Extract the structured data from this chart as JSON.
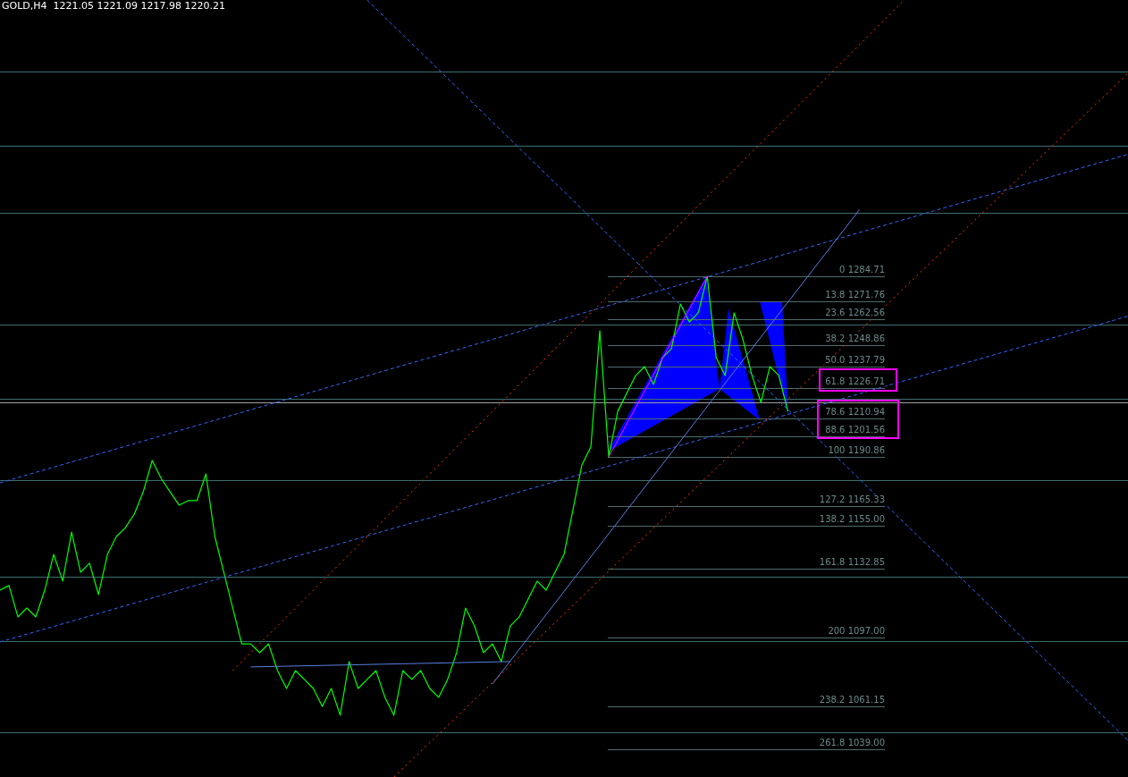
{
  "chart_data": {
    "type": "line",
    "title": "GOLD,H4  1221.05 1221.09 1217.98 1220.21",
    "categories": [
      null,
      null,
      null,
      null,
      null,
      null,
      null,
      null,
      null,
      null,
      null,
      null,
      null,
      null,
      null,
      null,
      null,
      null,
      null,
      null,
      null,
      null,
      null,
      null,
      null,
      null,
      null,
      null,
      null,
      null,
      null,
      null,
      null,
      null,
      null,
      null,
      null,
      null,
      null,
      null,
      null,
      null,
      null,
      null,
      null,
      null,
      null,
      null,
      null,
      null,
      null,
      null,
      null,
      null,
      null,
      null,
      null,
      null,
      null,
      null,
      null,
      null,
      null,
      null,
      null,
      null,
      null,
      null,
      null,
      null,
      null,
      null,
      null,
      null,
      null,
      null,
      null,
      null,
      null,
      null,
      null,
      null,
      null,
      null,
      null,
      null,
      null,
      null,
      null,
      null,
      null,
      null,
      null,
      null,
      null,
      null,
      null,
      null,
      null,
      null,
      null,
      null,
      null,
      null,
      null,
      null,
      null,
      null,
      null,
      null,
      null,
      null,
      null,
      null,
      null,
      null,
      null,
      null,
      null,
      null,
      null,
      null,
      null,
      null,
      null,
      null,
      null
    ],
    "ylim": [
      1024.5,
      1428.3
    ],
    "tick_labels": false,
    "series": [
      {
        "type": "line",
        "color": "#00ff00",
        "values": [
          1121.6,
          1124.0,
          1107.7,
          1112.3,
          1107.7,
          1121.6,
          1140.2,
          1126.3,
          1151.8,
          1130.9,
          1135.6,
          1119.3,
          1140.2,
          1149.5,
          1154.1,
          1161.1,
          1172.7,
          1189.0,
          1179.7,
          1172.7,
          1165.8,
          1168.1,
          1168.1,
          1182.0,
          1149.5,
          1130.9,
          1112.3,
          1093.7,
          1093.7,
          1089.1,
          1093.7,
          1079.8,
          1070.5,
          1079.8,
          1075.2,
          1070.5,
          1061.2,
          1070.5,
          1056.6,
          1084.5,
          1070.5,
          1075.2,
          1079.8,
          1065.9,
          1056.6,
          1079.8,
          1075.2,
          1079.8,
          1070.5,
          1065.9,
          1075.2,
          1089.1,
          1112.3,
          1103.0,
          1089.1,
          1093.7,
          1084.5,
          1103.0,
          1107.7,
          1117.0,
          1126.3,
          1121.6,
          1130.9,
          1140.2,
          1163.4,
          1186.7,
          1196.0,
          1256.4,
          1190.9,
          1214.5,
          1223.8,
          1233.1,
          1237.8,
          1228.5,
          1242.4,
          1247.1,
          1270.3,
          1261.0,
          1265.7,
          1284.7,
          1242.4,
          1233.1,
          1265.7,
          1251.7,
          1233.1,
          1219.2,
          1237.8,
          1233.1,
          1214.5,
          null,
          null,
          null,
          null,
          null,
          null,
          null,
          null,
          null,
          null,
          null,
          null,
          null,
          null,
          null,
          null,
          null,
          null,
          null,
          null,
          null,
          null,
          null,
          null,
          null,
          null,
          null,
          null,
          null,
          null,
          null,
          null,
          null,
          null,
          null,
          null,
          null,
          null
        ]
      },
      {
        "type": "line",
        "color": "#ff00ff",
        "line_style": "solid",
        "values": [
          null,
          null,
          null,
          null,
          null,
          null,
          null,
          null,
          null,
          null,
          null,
          null,
          null,
          null,
          null,
          null,
          null,
          null,
          null,
          null,
          null,
          null,
          null,
          null,
          null,
          null,
          null,
          null,
          null,
          null,
          null,
          null,
          null,
          null,
          null,
          null,
          null,
          null,
          null,
          null,
          null,
          null,
          null,
          null,
          null,
          null,
          null,
          null,
          null,
          null,
          null,
          null,
          null,
          null,
          null,
          null,
          null,
          null,
          null,
          null,
          null,
          null,
          null,
          null,
          null,
          null,
          null,
          null,
          1190.9,
          null,
          null,
          null,
          null,
          null,
          null,
          null,
          null,
          null,
          null,
          1284.7,
          null,
          null,
          null,
          null,
          null,
          null,
          null,
          null,
          null,
          null,
          null,
          null,
          null,
          null,
          null,
          null,
          null,
          null,
          null,
          null,
          null,
          null,
          null,
          null,
          null,
          null,
          null,
          null,
          null,
          null,
          null,
          null,
          null,
          null,
          null,
          null,
          null,
          null,
          null,
          null,
          null,
          null,
          null,
          null,
          null,
          null,
          null
        ]
      },
      {
        "type": "line",
        "color": "#3366ff",
        "line_style": "dashed",
        "values": [
          1177.4,
          null,
          null,
          null,
          null,
          null,
          null,
          null,
          null,
          null,
          null,
          null,
          null,
          null,
          null,
          null,
          null,
          null,
          null,
          null,
          null,
          null,
          null,
          null,
          null,
          null,
          null,
          null,
          null,
          null,
          null,
          null,
          null,
          null,
          null,
          null,
          null,
          null,
          null,
          null,
          null,
          null,
          null,
          null,
          null,
          null,
          null,
          null,
          null,
          null,
          null,
          null,
          null,
          null,
          null,
          null,
          null,
          null,
          null,
          null,
          null,
          null,
          null,
          null,
          null,
          null,
          null,
          null,
          null,
          null,
          null,
          null,
          null,
          null,
          null,
          null,
          null,
          null,
          null,
          null,
          null,
          null,
          null,
          null,
          null,
          null,
          null,
          null,
          null,
          null,
          null,
          null,
          null,
          null,
          null,
          null,
          null,
          null,
          null,
          null,
          null,
          null,
          null,
          null,
          null,
          null,
          null,
          null,
          null,
          null,
          null,
          null,
          null,
          null,
          null,
          null,
          null,
          null,
          null,
          null,
          null,
          null,
          null,
          null,
          null,
          null,
          1348.1
        ]
      },
      {
        "type": "line",
        "color": "#3366ff",
        "line_style": "dashed",
        "values": [
          1094.7,
          null,
          null,
          null,
          null,
          null,
          null,
          null,
          null,
          null,
          null,
          null,
          null,
          null,
          null,
          null,
          null,
          null,
          null,
          null,
          null,
          null,
          null,
          null,
          null,
          null,
          null,
          null,
          null,
          null,
          null,
          null,
          null,
          null,
          null,
          null,
          null,
          null,
          null,
          null,
          null,
          null,
          null,
          null,
          null,
          null,
          null,
          null,
          null,
          null,
          null,
          null,
          null,
          null,
          null,
          null,
          null,
          null,
          null,
          null,
          null,
          null,
          null,
          null,
          null,
          null,
          null,
          null,
          null,
          null,
          null,
          null,
          null,
          null,
          null,
          null,
          null,
          null,
          null,
          null,
          null,
          null,
          null,
          null,
          null,
          null,
          null,
          null,
          null,
          null,
          null,
          null,
          null,
          null,
          null,
          null,
          null,
          null,
          null,
          null,
          null,
          null,
          null,
          null,
          null,
          null,
          null,
          null,
          null,
          null,
          null,
          null,
          null,
          null,
          null,
          null,
          null,
          null,
          null,
          null,
          null,
          null,
          null,
          null,
          null,
          null,
          1264.0
        ]
      },
      {
        "type": "line",
        "color": "#3366ff",
        "line_style": "dashed",
        "values": [
          null,
          null,
          null,
          null,
          null,
          null,
          null,
          null,
          null,
          null,
          null,
          null,
          null,
          null,
          null,
          null,
          null,
          null,
          null,
          null,
          null,
          null,
          null,
          null,
          null,
          null,
          null,
          null,
          null,
          null,
          null,
          null,
          null,
          null,
          null,
          null,
          null,
          null,
          null,
          null,
          null,
          1428.3,
          null,
          null,
          null,
          null,
          null,
          null,
          null,
          null,
          null,
          null,
          null,
          null,
          null,
          null,
          null,
          null,
          null,
          null,
          null,
          null,
          null,
          null,
          null,
          null,
          null,
          null,
          null,
          null,
          null,
          null,
          null,
          null,
          null,
          null,
          null,
          null,
          null,
          null,
          null,
          null,
          null,
          null,
          null,
          null,
          null,
          null,
          null,
          null,
          null,
          null,
          null,
          null,
          null,
          null,
          null,
          null,
          null,
          null,
          null,
          null,
          null,
          null,
          null,
          null,
          null,
          null,
          null,
          null,
          null,
          null,
          null,
          null,
          null,
          null,
          null,
          null,
          null,
          null,
          null,
          null,
          null,
          null,
          null,
          null,
          1043.5
        ]
      },
      {
        "type": "line",
        "color": "#5a7fe0",
        "line_style": "solid",
        "values": [
          null,
          null,
          null,
          null,
          null,
          null,
          null,
          null,
          null,
          null,
          null,
          null,
          null,
          null,
          null,
          null,
          null,
          null,
          null,
          null,
          null,
          null,
          null,
          null,
          null,
          null,
          null,
          null,
          null,
          null,
          null,
          null,
          null,
          null,
          null,
          null,
          null,
          null,
          null,
          null,
          null,
          null,
          null,
          null,
          null,
          null,
          null,
          null,
          null,
          null,
          null,
          null,
          null,
          null,
          null,
          1072.8,
          null,
          null,
          null,
          null,
          null,
          null,
          null,
          null,
          null,
          null,
          null,
          null,
          null,
          null,
          null,
          null,
          null,
          null,
          null,
          null,
          null,
          null,
          null,
          null,
          null,
          null,
          null,
          null,
          null,
          null,
          null,
          null,
          null,
          null,
          null,
          null,
          null,
          null,
          null,
          null,
          1319.3,
          null,
          null,
          null,
          null,
          null,
          null,
          null,
          null,
          null,
          null,
          null,
          null,
          null,
          null,
          null,
          null,
          null,
          null,
          null,
          null,
          null,
          null,
          null,
          null,
          null,
          null,
          null,
          null,
          null,
          null
        ]
      },
      {
        "type": "line",
        "color": "#5a7fe0",
        "line_style": "solid",
        "values": [
          null,
          null,
          null,
          null,
          null,
          null,
          null,
          null,
          null,
          null,
          null,
          null,
          null,
          null,
          null,
          null,
          null,
          null,
          null,
          null,
          null,
          null,
          null,
          null,
          null,
          null,
          null,
          null,
          1081.7,
          null,
          null,
          null,
          null,
          null,
          null,
          null,
          null,
          null,
          null,
          null,
          null,
          null,
          null,
          null,
          null,
          null,
          null,
          null,
          null,
          null,
          null,
          null,
          null,
          null,
          null,
          null,
          null,
          1084.5,
          null,
          null,
          null,
          null,
          null,
          null,
          null,
          null,
          null,
          null,
          null,
          null,
          null,
          null,
          null,
          null,
          null,
          null,
          null,
          null,
          null,
          null,
          null,
          null,
          null,
          null,
          null,
          null,
          null,
          null,
          null,
          null,
          null,
          null,
          null,
          null,
          null,
          null,
          null,
          null,
          null,
          null,
          null,
          null,
          null,
          null,
          null,
          null,
          null,
          null,
          null,
          null,
          null,
          null,
          null,
          null,
          null,
          null,
          null,
          null,
          null,
          null,
          null,
          null,
          null,
          null,
          null,
          null,
          null
        ]
      },
      {
        "type": "line",
        "color": "#ff3300",
        "line_style": "dotted",
        "values": [
          null,
          null,
          null,
          null,
          null,
          null,
          null,
          null,
          null,
          null,
          null,
          null,
          null,
          null,
          null,
          null,
          null,
          null,
          null,
          null,
          null,
          null,
          null,
          null,
          null,
          null,
          1079.8,
          null,
          null,
          null,
          null,
          null,
          null,
          null,
          null,
          null,
          null,
          null,
          null,
          null,
          null,
          null,
          null,
          null,
          null,
          null,
          null,
          null,
          null,
          null,
          null,
          null,
          null,
          null,
          null,
          null,
          null,
          null,
          null,
          null,
          null,
          null,
          null,
          null,
          null,
          null,
          null,
          null,
          null,
          null,
          null,
          null,
          null,
          null,
          null,
          null,
          null,
          null,
          null,
          null,
          null,
          null,
          null,
          null,
          null,
          null,
          null,
          null,
          null,
          null,
          null,
          null,
          null,
          null,
          null,
          null,
          null,
          null,
          null,
          null,
          null,
          1428.3,
          null,
          null,
          null,
          null,
          null,
          null,
          null,
          null,
          null,
          null,
          null,
          null,
          null,
          null,
          null,
          null,
          null,
          null,
          null,
          null,
          null,
          null,
          null,
          null,
          null
        ]
      },
      {
        "type": "line",
        "color": "#ff3300",
        "line_style": "dotted",
        "values": [
          null,
          null,
          null,
          null,
          null,
          null,
          null,
          null,
          null,
          null,
          null,
          null,
          null,
          null,
          null,
          null,
          null,
          null,
          null,
          null,
          null,
          null,
          null,
          null,
          null,
          null,
          null,
          null,
          null,
          null,
          null,
          null,
          null,
          null,
          null,
          null,
          null,
          null,
          null,
          null,
          null,
          null,
          null,
          null,
          1024.5,
          null,
          null,
          null,
          null,
          null,
          null,
          null,
          null,
          null,
          null,
          null,
          null,
          null,
          null,
          null,
          null,
          null,
          null,
          null,
          null,
          null,
          null,
          null,
          null,
          null,
          null,
          null,
          null,
          null,
          null,
          null,
          null,
          null,
          null,
          null,
          null,
          null,
          null,
          null,
          null,
          null,
          null,
          null,
          null,
          null,
          null,
          null,
          null,
          null,
          null,
          null,
          null,
          null,
          null,
          null,
          null,
          null,
          null,
          null,
          null,
          null,
          null,
          null,
          null,
          null,
          null,
          null,
          null,
          null,
          null,
          null,
          null,
          null,
          null,
          null,
          null,
          null,
          null,
          null,
          null,
          null,
          1390.2
        ]
      }
    ],
    "ref_lines": [
      {
        "axis": "y",
        "value": 1391.1,
        "color": "#3f6f6f"
      },
      {
        "axis": "y",
        "value": 1352.5,
        "color": "#3f6f6f"
      },
      {
        "axis": "y",
        "value": 1317.7,
        "color": "#3f6f6f"
      },
      {
        "axis": "y",
        "value": 1259.6,
        "color": "#3f6f6f"
      },
      {
        "axis": "y",
        "value": 1221.1,
        "color": "#3f6f6f"
      },
      {
        "axis": "y",
        "value": 1219.2,
        "color": "#a0a0a0"
      },
      {
        "axis": "y",
        "value": 1178.8,
        "color": "#3f6f6f"
      },
      {
        "axis": "y",
        "value": 1128.6,
        "color": "#3f6f6f"
      },
      {
        "axis": "y",
        "value": 1095.2,
        "color": "#3f6f6f"
      },
      {
        "axis": "y",
        "value": 1047.8,
        "color": "#3f6f6f"
      },
      {
        "axis": "y",
        "value": 1284.71,
        "label": "0 1284.71",
        "color": "#4f6b6b"
      },
      {
        "axis": "y",
        "value": 1271.76,
        "label": "13.8 1271.76",
        "color": "#4f6b6b"
      },
      {
        "axis": "y",
        "value": 1262.56,
        "label": "23.6 1262.56",
        "color": "#4f6b6b"
      },
      {
        "axis": "y",
        "value": 1248.86,
        "label": "38.2 1248.86",
        "color": "#4f6b6b"
      },
      {
        "axis": "y",
        "value": 1237.79,
        "label": "50.0 1237.79",
        "color": "#4f6b6b"
      },
      {
        "axis": "y",
        "value": 1226.71,
        "label": "61.8 1226.71",
        "color": "#4f6b6b"
      },
      {
        "axis": "y",
        "value": 1210.94,
        "label": "78.6 1210.94",
        "color": "#4f6b6b"
      },
      {
        "axis": "y",
        "value": 1201.56,
        "label": "88.6 1201.56",
        "color": "#4f6b6b"
      },
      {
        "axis": "y",
        "value": 1190.86,
        "label": "100 1190.86",
        "color": "#4f6b6b"
      },
      {
        "axis": "y",
        "value": 1165.33,
        "label": "127.2 1165.33",
        "color": "#4f6b6b"
      },
      {
        "axis": "y",
        "value": 1155.0,
        "label": "138.2 1155.00",
        "color": "#4f6b6b"
      },
      {
        "axis": "y",
        "value": 1132.85,
        "label": "161.8 1132.85",
        "color": "#4f6b6b"
      },
      {
        "axis": "y",
        "value": 1097.0,
        "label": "200 1097.00",
        "color": "#4f6b6b"
      },
      {
        "axis": "y",
        "value": 1061.15,
        "label": "238.2 1061.15",
        "color": "#4f6b6b"
      },
      {
        "axis": "y",
        "value": 1039.0,
        "label": "261.8 1039.00",
        "color": "#4f6b6b"
      }
    ]
  }
}
